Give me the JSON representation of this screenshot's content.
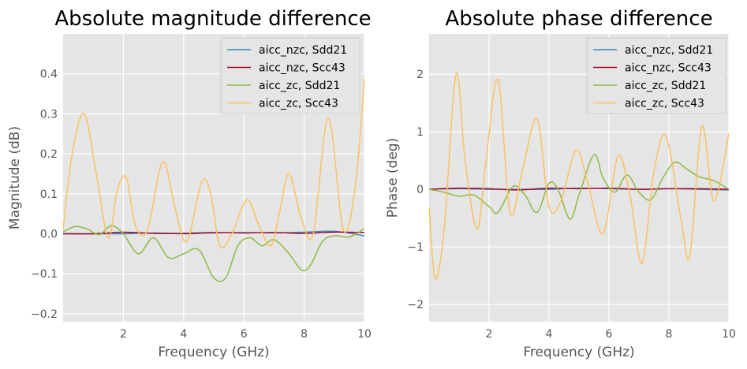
{
  "chart_data": [
    {
      "type": "line",
      "title": "Absolute magnitude difference",
      "xlabel": "Frequency (GHz)",
      "ylabel": "Magnitude (dB)",
      "xlim": [
        0,
        10
      ],
      "ylim": [
        -0.22,
        0.5
      ],
      "xticks": [
        2,
        4,
        6,
        8,
        10
      ],
      "yticks": [
        -0.2,
        -0.1,
        0.0,
        0.1,
        0.2,
        0.3,
        0.4
      ],
      "ytick_labels": [
        "−0.2",
        "−0.1",
        "0.0",
        "0.1",
        "0.2",
        "0.3",
        "0.4"
      ],
      "grid": true,
      "legend": "top-right",
      "series": [
        {
          "name": "aicc_nzc, Sdd21",
          "color": "#348ABD",
          "x": [
            0,
            1,
            2,
            3,
            4,
            5,
            6,
            7,
            8,
            9,
            10
          ],
          "y": [
            0,
            0,
            0,
            0.002,
            0,
            0.002,
            0.003,
            0.002,
            0.004,
            0.006,
            -0.005
          ]
        },
        {
          "name": "aicc_nzc, Scc43",
          "color": "#A60628",
          "x": [
            0,
            1,
            2,
            3,
            4,
            5,
            6,
            7,
            8,
            9,
            10
          ],
          "y": [
            0,
            0,
            0.004,
            0.001,
            0.001,
            0.003,
            0.002,
            0.003,
            0.001,
            0.004,
            0.003
          ]
        },
        {
          "name": "aicc_zc, Sdd21",
          "color": "#8EBA42",
          "x": [
            0,
            0.4,
            0.8,
            1.2,
            1.6,
            2.0,
            2.5,
            3.0,
            3.5,
            4.0,
            4.5,
            5.0,
            5.4,
            5.8,
            6.2,
            6.6,
            7.0,
            7.5,
            7.9,
            8.2,
            8.6,
            9.0,
            9.5,
            10.0
          ],
          "y": [
            0.005,
            0.018,
            0.012,
            -0.002,
            0.02,
            0.0,
            -0.05,
            -0.01,
            -0.06,
            -0.05,
            -0.04,
            -0.11,
            -0.11,
            -0.03,
            -0.01,
            -0.03,
            -0.015,
            -0.05,
            -0.09,
            -0.08,
            -0.02,
            -0.005,
            -0.008,
            0.013
          ]
        },
        {
          "name": "aicc_zc, Scc43",
          "color": "#FBC15E",
          "x": [
            0,
            0.3,
            0.7,
            1.1,
            1.5,
            1.8,
            2.1,
            2.4,
            2.8,
            3.3,
            3.7,
            4.1,
            4.6,
            4.9,
            5.2,
            5.6,
            6.1,
            6.5,
            6.9,
            7.2,
            7.5,
            7.9,
            8.3,
            8.8,
            9.3,
            9.7,
            10.0
          ],
          "y": [
            0.01,
            0.2,
            0.3,
            0.15,
            -0.01,
            0.11,
            0.14,
            0.02,
            0.01,
            0.18,
            0.07,
            -0.02,
            0.13,
            0.1,
            -0.03,
            0.0,
            0.085,
            0.02,
            -0.03,
            0.06,
            0.15,
            0.04,
            0.0,
            0.29,
            0.01,
            0.12,
            0.39
          ]
        }
      ]
    },
    {
      "type": "line",
      "title": "Absolute phase difference",
      "xlabel": "Frequency (GHz)",
      "ylabel": "Phase (deg)",
      "xlim": [
        0,
        10
      ],
      "ylim": [
        -2.3,
        2.7
      ],
      "xticks": [
        2,
        4,
        6,
        8,
        10
      ],
      "yticks": [
        -2,
        -1,
        0,
        1,
        2
      ],
      "ytick_labels": [
        "−2",
        "−1",
        "0",
        "1",
        "2"
      ],
      "grid": true,
      "legend": "top-right",
      "series": [
        {
          "name": "aicc_nzc, Sdd21",
          "color": "#348ABD",
          "x": [
            0,
            1,
            2,
            3,
            4,
            5,
            6,
            7,
            8,
            9,
            10
          ],
          "y": [
            0,
            0.01,
            0.0,
            0.0,
            0.0,
            0.02,
            0.01,
            0.0,
            0.01,
            0.0,
            -0.01
          ]
        },
        {
          "name": "aicc_nzc, Scc43",
          "color": "#A60628",
          "x": [
            0,
            1,
            2,
            3,
            4,
            5,
            6,
            7,
            8,
            9,
            10
          ],
          "y": [
            0,
            0.02,
            0.01,
            -0.01,
            0.02,
            0.01,
            0.02,
            0.0,
            0.01,
            0.01,
            0.0
          ]
        },
        {
          "name": "aicc_zc, Sdd21",
          "color": "#8EBA42",
          "x": [
            0,
            0.5,
            1.0,
            1.5,
            2.0,
            2.3,
            2.8,
            3.2,
            3.6,
            4.0,
            4.3,
            4.7,
            5.0,
            5.5,
            5.8,
            6.2,
            6.6,
            7.0,
            7.4,
            7.8,
            8.2,
            8.6,
            9.0,
            9.5,
            10.0
          ],
          "y": [
            0,
            -0.05,
            -0.12,
            -0.1,
            -0.3,
            -0.4,
            0.05,
            -0.1,
            -0.4,
            0.1,
            0.0,
            -0.52,
            -0.1,
            0.6,
            0.2,
            -0.05,
            0.25,
            -0.05,
            -0.18,
            0.2,
            0.47,
            0.35,
            0.22,
            0.15,
            0.0
          ]
        },
        {
          "name": "aicc_zc, Scc43",
          "color": "#FBC15E",
          "x": [
            0,
            0.2,
            0.5,
            0.9,
            1.2,
            1.6,
            1.9,
            2.3,
            2.7,
            3.1,
            3.6,
            4.0,
            4.4,
            4.9,
            5.3,
            5.8,
            6.3,
            6.7,
            7.1,
            7.5,
            7.9,
            8.4,
            8.7,
            9.1,
            9.5,
            10.0
          ],
          "y": [
            -0.3,
            -1.55,
            -0.7,
            2.0,
            0.5,
            -0.7,
            0.5,
            1.9,
            -0.4,
            0.3,
            1.22,
            -0.3,
            -0.2,
            0.68,
            0.1,
            -0.77,
            0.57,
            -0.1,
            -1.28,
            0.3,
            0.93,
            -0.5,
            -1.15,
            1.09,
            -0.2,
            0.97
          ]
        }
      ]
    }
  ]
}
